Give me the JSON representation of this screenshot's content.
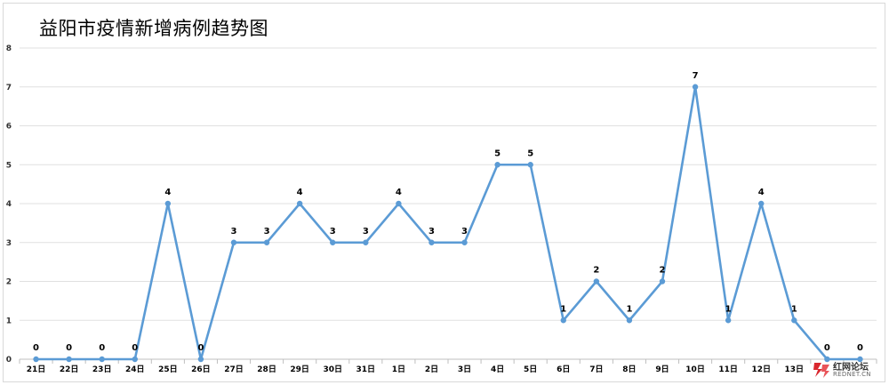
{
  "title": "益阳市疫情新增病例趋势图",
  "watermark": {
    "name": "红网论坛",
    "url": "REDNET.CN"
  },
  "chart_data": {
    "type": "line",
    "title": "益阳市疫情新增病例趋势图",
    "xlabel": "",
    "ylabel": "",
    "categories": [
      "21日",
      "22日",
      "23日",
      "24日",
      "25日",
      "26日",
      "27日",
      "28日",
      "29日",
      "30日",
      "31日",
      "1日",
      "2日",
      "3日",
      "4日",
      "5日",
      "6日",
      "7日",
      "8日",
      "9日",
      "10日",
      "11日",
      "12日",
      "13日",
      "",
      ""
    ],
    "series": [
      {
        "values": [
          0,
          0,
          0,
          0,
          4,
          0,
          3,
          3,
          4,
          3,
          3,
          4,
          3,
          3,
          5,
          5,
          1,
          2,
          1,
          2,
          7,
          1,
          4,
          1,
          0,
          0
        ],
        "color": "#5b9bd5"
      }
    ],
    "ylim": [
      0,
      8
    ],
    "yticks": [
      0,
      1,
      2,
      3,
      4,
      5,
      6,
      7,
      8
    ],
    "grid": true,
    "data_labels": true,
    "legend": "none"
  }
}
